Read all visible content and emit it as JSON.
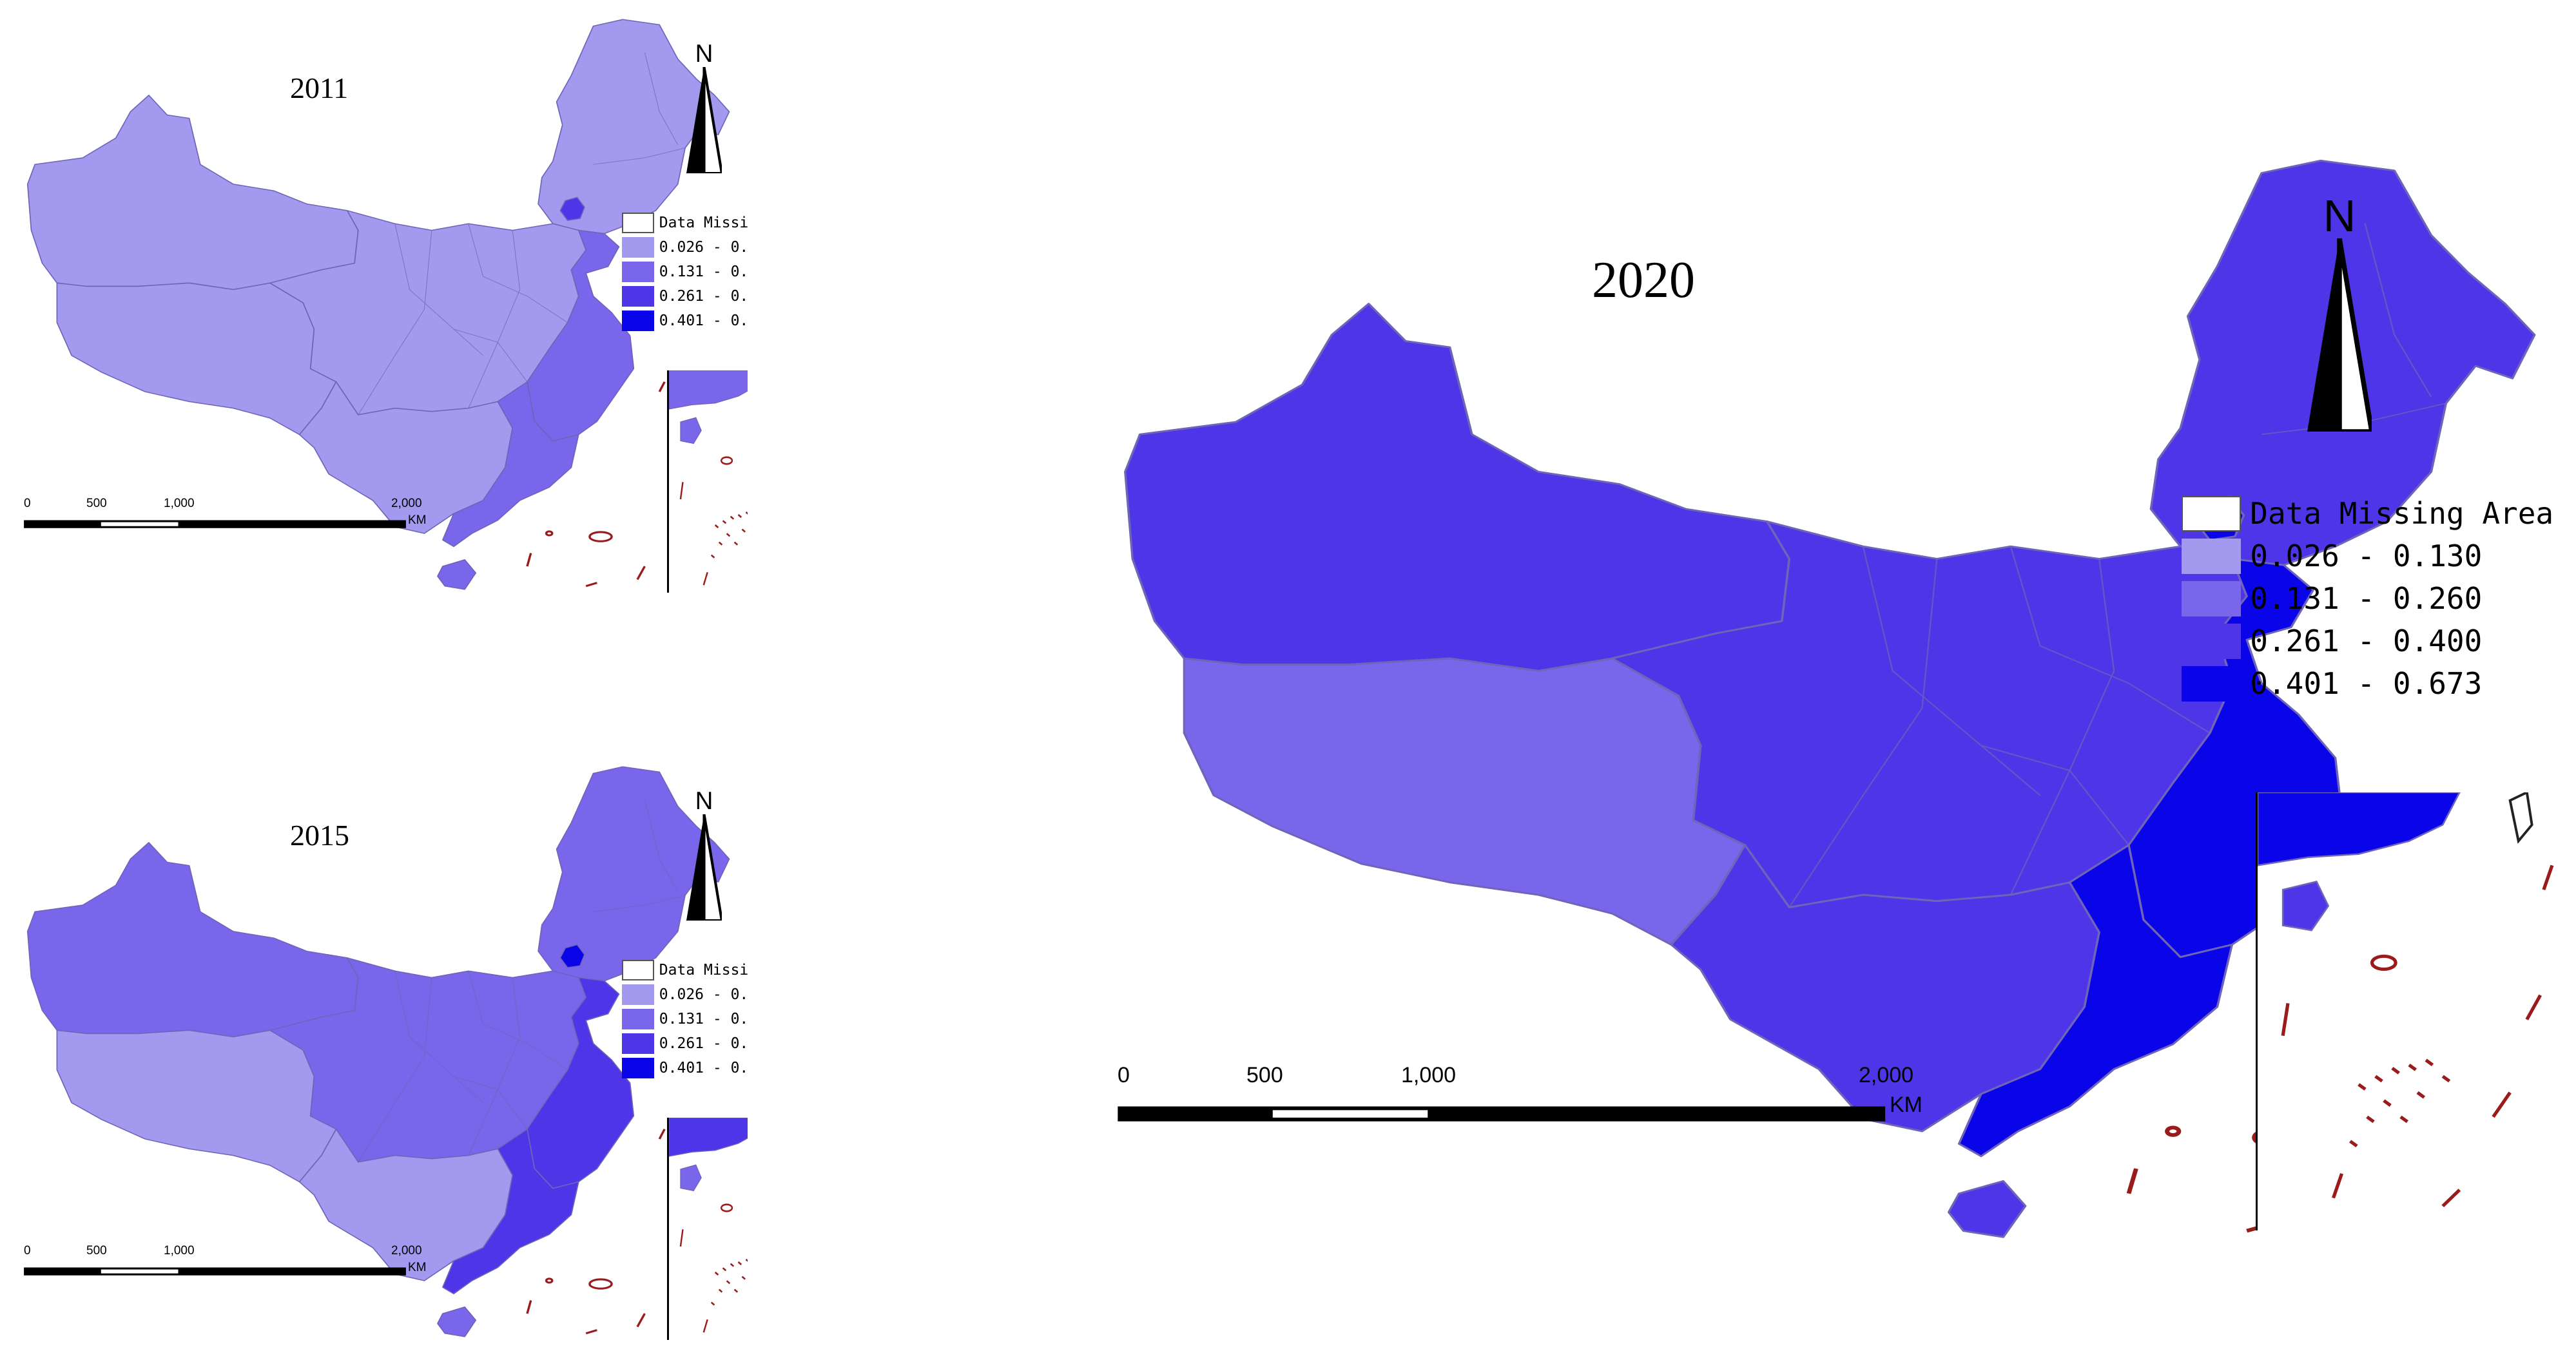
{
  "legend": {
    "items": [
      {
        "label": "Data Missing Area",
        "color": "#ffffff"
      },
      {
        "label": "0.026 - 0.130",
        "color": "#a39af0"
      },
      {
        "label": "0.131 - 0.260",
        "color": "#7a66ea"
      },
      {
        "label": "0.261 - 0.400",
        "color": "#4e36e8"
      },
      {
        "label": "0.401 - 0.673",
        "color": "#0a04e8"
      }
    ]
  },
  "maps": [
    {
      "year": "2011",
      "north_label": "N",
      "scale_labels": [
        "0",
        "500",
        "1,000",
        "2,000"
      ],
      "scale_unit": "KM",
      "fills": {
        "main": "#a39af0",
        "west": "#a39af0",
        "tibet": "#a39af0",
        "sw": "#a39af0",
        "central": "#a39af0",
        "ne": "#a39af0",
        "east_coast": "#7a66ea",
        "south_coast": "#7a66ea",
        "beijing": "#4e36e8",
        "hainan": "#7a66ea"
      }
    },
    {
      "year": "2015",
      "north_label": "N",
      "scale_labels": [
        "0",
        "500",
        "1,000",
        "2,000"
      ],
      "scale_unit": "KM",
      "fills": {
        "main": "#7a66ea",
        "west": "#7a66ea",
        "tibet": "#a39af0",
        "sw": "#a39af0",
        "central": "#7a66ea",
        "ne": "#7a66ea",
        "east_coast": "#4e36e8",
        "south_coast": "#4e36e8",
        "beijing": "#0a04e8",
        "hainan": "#7a66ea"
      }
    },
    {
      "year": "2020",
      "north_label": "N",
      "scale_labels": [
        "0",
        "500",
        "1,000",
        "2,000"
      ],
      "scale_unit": "KM",
      "fills": {
        "main": "#4e36e8",
        "west": "#4e36e8",
        "tibet": "#7a66ea",
        "sw": "#4e36e8",
        "central": "#4e36e8",
        "ne": "#4e36e8",
        "east_coast": "#0a04e8",
        "south_coast": "#0a04e8",
        "beijing": "#0a04e8",
        "hainan": "#4e36e8"
      }
    }
  ]
}
